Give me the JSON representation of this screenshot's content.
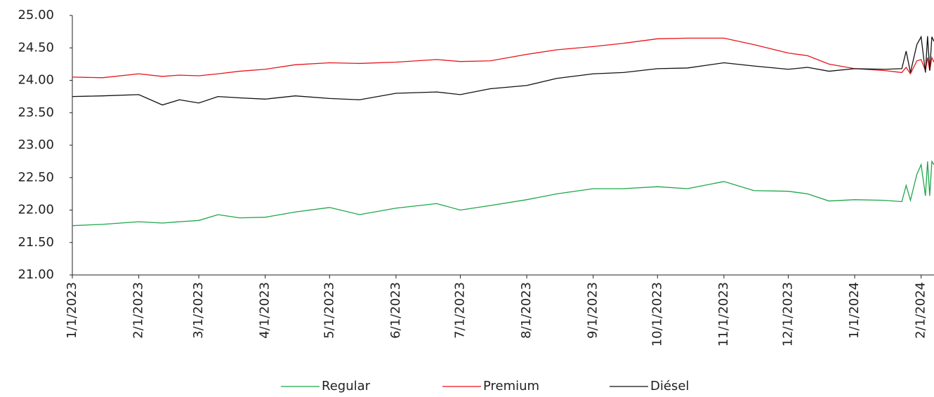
{
  "chart_data": {
    "type": "line",
    "x": [
      "1/1/2023",
      "1/15/2023",
      "2/1/2023",
      "2/12/2023",
      "2/20/2023",
      "3/1/2023",
      "3/10/2023",
      "3/20/2023",
      "4/1/2023",
      "4/15/2023",
      "5/1/2023",
      "5/15/2023",
      "6/1/2023",
      "6/20/2023",
      "7/1/2023",
      "7/15/2023",
      "8/1/2023",
      "8/15/2023",
      "9/1/2023",
      "9/15/2023",
      "10/1/2023",
      "10/15/2023",
      "11/1/2023",
      "11/15/2023",
      "12/1/2023",
      "12/10/2023",
      "12/20/2023",
      "1/1/2024",
      "1/15/2024",
      "1/23/2024",
      "1/25/2024",
      "1/27/2024",
      "1/30/2024",
      "2/1/2024",
      "2/3/2024",
      "2/4/2024",
      "2/5/2024",
      "2/6/2024",
      "2/7/2024"
    ],
    "series": [
      {
        "name": "Regular",
        "color": "#1fa64a",
        "values": [
          21.76,
          21.78,
          21.82,
          21.8,
          21.82,
          21.84,
          21.93,
          21.88,
          21.89,
          21.97,
          22.04,
          21.93,
          22.03,
          22.1,
          22.0,
          22.07,
          22.16,
          22.25,
          22.33,
          22.33,
          22.36,
          22.33,
          22.44,
          22.3,
          22.29,
          22.25,
          22.14,
          22.16,
          22.15,
          22.13,
          22.38,
          22.15,
          22.55,
          22.7,
          22.22,
          22.75,
          22.22,
          22.75,
          22.7
        ]
      },
      {
        "name": "Premium",
        "color": "#e8141b",
        "values": [
          24.05,
          24.04,
          24.1,
          24.06,
          24.08,
          24.07,
          24.1,
          24.14,
          24.17,
          24.24,
          24.27,
          24.26,
          24.28,
          24.32,
          24.29,
          24.3,
          24.4,
          24.47,
          24.52,
          24.57,
          24.64,
          24.65,
          24.65,
          24.55,
          24.42,
          24.38,
          24.25,
          24.18,
          24.15,
          24.12,
          24.2,
          24.1,
          24.3,
          24.32,
          24.15,
          24.35,
          24.15,
          24.35,
          24.28
        ]
      },
      {
        "name": "Diésel",
        "color": "#111111",
        "values": [
          23.75,
          23.76,
          23.78,
          23.62,
          23.7,
          23.65,
          23.75,
          23.73,
          23.71,
          23.76,
          23.72,
          23.7,
          23.8,
          23.82,
          23.78,
          23.87,
          23.92,
          24.03,
          24.1,
          24.12,
          24.18,
          24.19,
          24.27,
          24.22,
          24.17,
          24.2,
          24.14,
          24.18,
          24.17,
          24.18,
          24.45,
          24.12,
          24.55,
          24.67,
          24.12,
          24.68,
          24.15,
          24.67,
          24.6
        ]
      }
    ],
    "xlim": [
      "1/1/2023",
      "2/7/2024"
    ],
    "xticks": [
      "1/1/2023",
      "2/1/2023",
      "3/1/2023",
      "4/1/2023",
      "5/1/2023",
      "6/1/2023",
      "7/1/2023",
      "8/1/2023",
      "9/1/2023",
      "10/1/2023",
      "11/1/2023",
      "12/1/2023",
      "1/1/2024",
      "2/1/2024"
    ],
    "ylim": [
      21,
      25
    ],
    "yticks": [
      {
        "value": 21,
        "label": "21.00"
      },
      {
        "value": 21.5,
        "label": "21.50"
      },
      {
        "value": 22,
        "label": "22.00"
      },
      {
        "value": 22.5,
        "label": "22.50"
      },
      {
        "value": 23,
        "label": "23.00"
      },
      {
        "value": 23.5,
        "label": "23.50"
      },
      {
        "value": 24,
        "label": "24.00"
      },
      {
        "value": 24.5,
        "label": "24.50"
      },
      {
        "value": 25,
        "label": "25.00"
      }
    ],
    "legend": "bottom"
  }
}
